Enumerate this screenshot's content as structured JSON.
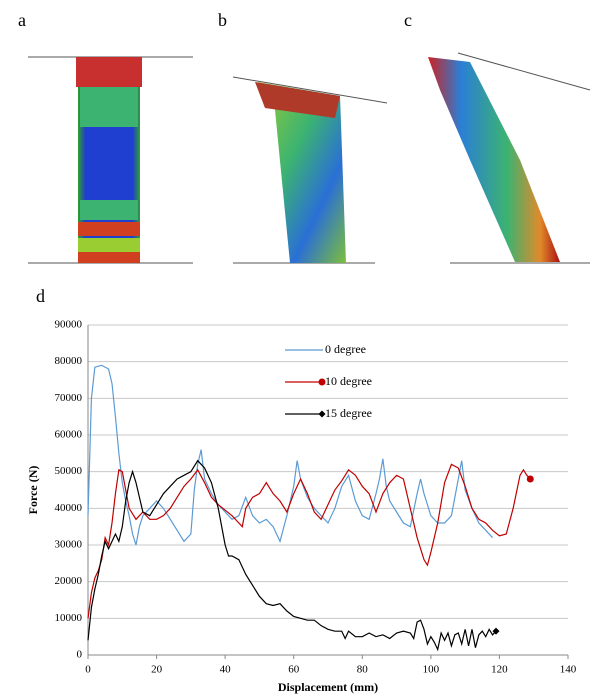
{
  "panels": {
    "a": "a",
    "b": "b",
    "c": "c",
    "d": "d"
  },
  "chart_data": {
    "type": "line",
    "xlabel": "Displacement (mm)",
    "ylabel": "Force (N)",
    "xlim": [
      0,
      140
    ],
    "xticks": [
      0,
      20,
      40,
      60,
      80,
      100,
      120,
      140
    ],
    "ylim": [
      0,
      90000
    ],
    "yticks": [
      0,
      10000,
      20000,
      30000,
      40000,
      50000,
      60000,
      70000,
      80000,
      90000
    ],
    "grid": true,
    "legend": "top-center",
    "series": [
      {
        "name": "0 degree",
        "color": "#5b9bd5",
        "marker": "none",
        "x": [
          0,
          1,
          2,
          4,
          6,
          7,
          8,
          9,
          10,
          11,
          12,
          13,
          14,
          15,
          16,
          18,
          20,
          22,
          24,
          26,
          28,
          30,
          31,
          32,
          33,
          34,
          36,
          38,
          40,
          42,
          44,
          46,
          48,
          50,
          52,
          54,
          56,
          58,
          60,
          61,
          62,
          64,
          66,
          68,
          70,
          72,
          74,
          76,
          78,
          80,
          82,
          84,
          85,
          86,
          87,
          88,
          90,
          92,
          94,
          96,
          97,
          98,
          100,
          102,
          104,
          106,
          108,
          109,
          110,
          112,
          114,
          116,
          118
        ],
        "values": [
          38000,
          70000,
          78500,
          79000,
          78000,
          74000,
          65000,
          55000,
          47000,
          42000,
          38000,
          33000,
          30000,
          35000,
          38000,
          40000,
          42000,
          40000,
          37000,
          34000,
          31000,
          33000,
          45000,
          52000,
          56000,
          48000,
          44000,
          41000,
          39000,
          37000,
          38000,
          43000,
          38000,
          36000,
          37000,
          35000,
          31000,
          38000,
          46000,
          53000,
          48000,
          43000,
          40000,
          38000,
          36000,
          40000,
          46000,
          49000,
          42000,
          38000,
          37000,
          44000,
          48000,
          53500,
          46000,
          42000,
          39000,
          36000,
          35000,
          44000,
          48000,
          44000,
          38000,
          36000,
          36000,
          38000,
          48000,
          53000,
          45000,
          40000,
          36000,
          34000,
          32000
        ]
      },
      {
        "name": "10 degree",
        "color": "#c00000",
        "marker": "circle",
        "x": [
          0,
          1,
          2,
          3,
          4,
          5,
          6,
          7,
          8,
          9,
          10,
          11,
          12,
          14,
          16,
          18,
          20,
          22,
          24,
          26,
          28,
          30,
          32,
          34,
          36,
          38,
          40,
          42,
          44,
          45,
          46,
          48,
          50,
          52,
          54,
          56,
          58,
          60,
          62,
          64,
          66,
          68,
          70,
          72,
          74,
          76,
          78,
          80,
          82,
          84,
          86,
          88,
          90,
          92,
          94,
          96,
          98,
          99,
          100,
          102,
          104,
          106,
          108,
          110,
          112,
          114,
          116,
          118,
          120,
          122,
          124,
          126,
          127,
          128,
          129
        ],
        "values": [
          10000,
          17000,
          21000,
          23000,
          26000,
          32000,
          30000,
          36000,
          44000,
          50500,
          50000,
          45000,
          40000,
          37000,
          39000,
          37000,
          37000,
          38000,
          40000,
          43000,
          46000,
          48000,
          50500,
          47000,
          43000,
          41000,
          39500,
          38000,
          36000,
          35000,
          40000,
          43000,
          44000,
          47000,
          44000,
          42000,
          39000,
          44000,
          48000,
          44000,
          39000,
          37000,
          41000,
          45000,
          47500,
          50500,
          49000,
          46000,
          44000,
          39000,
          44000,
          47000,
          49000,
          48000,
          40000,
          32000,
          26000,
          24500,
          28000,
          36000,
          47000,
          52000,
          51000,
          46000,
          40000,
          37000,
          36000,
          34000,
          32500,
          33000,
          40000,
          49000,
          50500,
          49000,
          48000
        ]
      },
      {
        "name": "15 degree",
        "color": "#000000",
        "marker": "diamond",
        "x": [
          0,
          1,
          2,
          3,
          4,
          5,
          6,
          7,
          8,
          9,
          10,
          11,
          12,
          13,
          14,
          15,
          16,
          18,
          20,
          22,
          24,
          26,
          28,
          30,
          32,
          34,
          36,
          38,
          40,
          41,
          42,
          44,
          46,
          48,
          50,
          52,
          54,
          56,
          58,
          60,
          62,
          64,
          66,
          68,
          70,
          72,
          74,
          75,
          76,
          78,
          80,
          82,
          84,
          86,
          88,
          90,
          92,
          94,
          95,
          96,
          97,
          98,
          99,
          100,
          101,
          102,
          103,
          104,
          105,
          106,
          107,
          108,
          109,
          110,
          111,
          112,
          113,
          114,
          115,
          116,
          117,
          118,
          119
        ],
        "values": [
          4000,
          13000,
          18000,
          22000,
          27000,
          31000,
          29000,
          31000,
          33000,
          31000,
          35000,
          42000,
          47000,
          50000,
          47000,
          43000,
          39000,
          38000,
          41000,
          44000,
          46000,
          48000,
          49000,
          50000,
          53000,
          51000,
          47000,
          40000,
          30000,
          27000,
          27000,
          26000,
          22000,
          19000,
          16000,
          14000,
          13500,
          14000,
          12000,
          10500,
          10000,
          9500,
          9500,
          8000,
          7000,
          6500,
          6500,
          4500,
          6500,
          5000,
          5000,
          6000,
          5000,
          5500,
          4500,
          6000,
          6500,
          6000,
          4500,
          9000,
          9500,
          7000,
          3000,
          5000,
          3500,
          1500,
          6000,
          4000,
          6000,
          2500,
          5500,
          6000,
          3000,
          7000,
          2500,
          7000,
          2000,
          5500,
          6500,
          5000,
          7000,
          5500,
          6500
        ]
      }
    ]
  }
}
